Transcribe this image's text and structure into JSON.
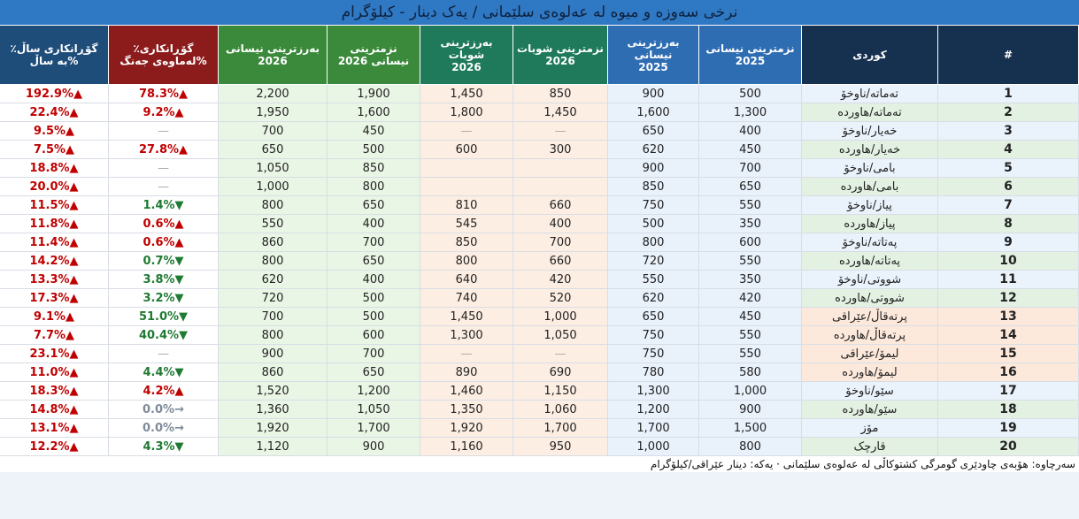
{
  "title": "نرخی سەوزە و میوە لە عەلوەی سلێمانی / یەک دینار - کیلۆگرام",
  "table": {
    "headers": [
      "#",
      "کوردی",
      "نزمترینی نیسانی\n2025",
      "بەرزترینی نیسانی\n2025",
      "نزمترینی شوبات\n2026",
      "بەرزترینی شوبات\n2026",
      "نزمترینی نیسانی 2026",
      "بەرزترینی نیسانی\n2026",
      "گۆڕانکاری٪\n%لەماوەی جەنگ",
      "گۆڕانکاری ساڵ٪\n%بە ساڵ"
    ],
    "rows": [
      [
        "1",
        "تەماتە/ناوخۆ",
        "500",
        "900",
        "850",
        "1,450",
        "1,900",
        "2,200",
        "▲78.3%",
        "▲192.9%"
      ],
      [
        "2",
        "تەماتە/هاوردە",
        "1,300",
        "1,600",
        "1,450",
        "1,800",
        "1,600",
        "1,950",
        "▲9.2%",
        "▲22.4%"
      ],
      [
        "3",
        "خەیار/ناوخۆ",
        "400",
        "650",
        "—",
        "—",
        "450",
        "700",
        "—",
        "▲9.5%"
      ],
      [
        "4",
        "خەیار/هاوردە",
        "450",
        "620",
        "300",
        "600",
        "500",
        "650",
        "▲27.8%",
        "▲7.5%"
      ],
      [
        "5",
        "بامی/ناوخۆ",
        "700",
        "900",
        null,
        null,
        "850",
        "1,050",
        "—",
        "▲18.8%"
      ],
      [
        "6",
        "بامی/هاوردە",
        "650",
        "850",
        null,
        null,
        "800",
        "1,000",
        "—",
        "▲20.0%"
      ],
      [
        "7",
        "پیاز/ناوخۆ",
        "550",
        "750",
        "660",
        "810",
        "650",
        "800",
        "▼1.4%",
        "▲11.5%"
      ],
      [
        "8",
        "پیاز/هاوردە",
        "350",
        "500",
        "400",
        "545",
        "400",
        "550",
        "▲0.6%",
        "▲11.8%"
      ],
      [
        "9",
        "پەتاتە/ناوخۆ",
        "600",
        "800",
        "700",
        "850",
        "700",
        "860",
        "▲0.6%",
        "▲11.4%"
      ],
      [
        "10",
        "پەتاتە/هاوردە",
        "550",
        "720",
        "660",
        "800",
        "650",
        "800",
        "▼0.7%",
        "▲14.2%"
      ],
      [
        "11",
        "شووتی/ناوخۆ",
        "350",
        "550",
        "420",
        "640",
        "400",
        "620",
        "▼3.8%",
        "▲13.3%"
      ],
      [
        "12",
        "شووتی/هاوردە",
        "420",
        "620",
        "520",
        "740",
        "500",
        "720",
        "▼3.2%",
        "▲17.3%"
      ],
      [
        "13",
        "پرتەقاڵ/عێراقی",
        "450",
        "650",
        "1,000",
        "1,450",
        "500",
        "700",
        "▼51.0%",
        "▲9.1%"
      ],
      [
        "14",
        "پرتەقاڵ/هاوردە",
        "550",
        "750",
        "1,050",
        "1,300",
        "600",
        "800",
        "▼40.4%",
        "▲7.7%"
      ],
      [
        "15",
        "لیمۆ/عێراقی",
        "550",
        "750",
        "—",
        "—",
        "700",
        "900",
        "—",
        "▲23.1%"
      ],
      [
        "16",
        "لیمۆ/هاوردە",
        "580",
        "780",
        "690",
        "890",
        "650",
        "860",
        "▼4.4%",
        "▲11.0%"
      ],
      [
        "17",
        "سێو/ناوخۆ",
        "1,000",
        "1,300",
        "1,150",
        "1,460",
        "1,200",
        "1,520",
        "▲4.2%",
        "▲18.3%"
      ],
      [
        "18",
        "سێو/هاوردە",
        "900",
        "1,200",
        "1,060",
        "1,350",
        "1,050",
        "1,360",
        "→0.0%",
        "▲14.8%"
      ],
      [
        "19",
        "مۆز",
        "1,500",
        "1,700",
        "1,700",
        "1,920",
        "1,700",
        "1,920",
        "→0.0%",
        "▲13.1%"
      ],
      [
        "20",
        "قارچک",
        "800",
        "1,000",
        "950",
        "1,160",
        "900",
        "1,120",
        "▼4.3%",
        "▲12.2%"
      ]
    ]
  },
  "footnote": "سەرچاوە: هۆبەی چاودێری گومرگی کشتوکاڵی لە عەلوەی سلێمانی · یەکە: دینار عێراقی/کیلۆگرام"
}
